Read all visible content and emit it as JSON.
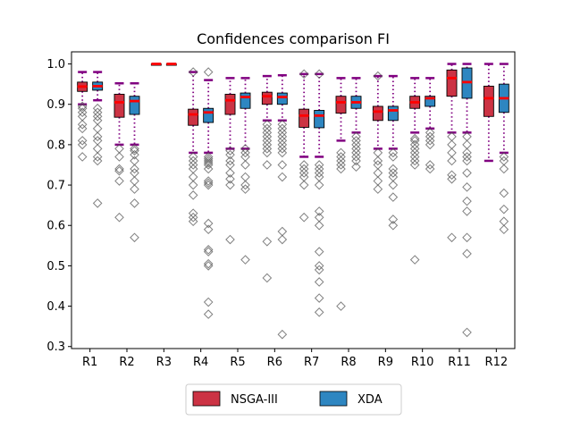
{
  "chart_data": {
    "type": "box",
    "title": "Confidences comparison FI",
    "xlabel": "",
    "ylabel": "",
    "ylim": [
      0.295,
      1.03
    ],
    "yticks": [
      0.3,
      0.4,
      0.5,
      0.6,
      0.7,
      0.8,
      0.9,
      1.0
    ],
    "ytick_labels": [
      "0.3",
      "0.4",
      "0.5",
      "0.6",
      "0.7",
      "0.8",
      "0.9",
      "1.0"
    ],
    "categories": [
      "R1",
      "R2",
      "R3",
      "R4",
      "R5",
      "R6",
      "R7",
      "R8",
      "R9",
      "R10",
      "R11",
      "R12"
    ],
    "legend": {
      "placement": "below",
      "entries": [
        "NSGA-III",
        "XDA"
      ]
    },
    "colors": {
      "NSGA-III": "#cc3344",
      "XDA": "#2e86c1",
      "median": "#ff0000",
      "whisker": "#800080",
      "flier": "#555555"
    },
    "series": [
      {
        "name": "NSGA-III",
        "boxes": [
          {
            "q1": 0.932,
            "median": 0.944,
            "q3": 0.955,
            "whislo": 0.9,
            "whishi": 0.98,
            "fliers": [
              0.77,
              0.8,
              0.81,
              0.84,
              0.85,
              0.87,
              0.88,
              0.89,
              0.895
            ]
          },
          {
            "q1": 0.868,
            "median": 0.905,
            "q3": 0.925,
            "whislo": 0.8,
            "whishi": 0.952,
            "fliers": [
              0.62,
              0.71,
              0.735,
              0.74,
              0.77,
              0.79
            ]
          },
          {
            "q1": 0.999,
            "median": 1.0,
            "q3": 1.0,
            "whislo": 0.999,
            "whishi": 1.0,
            "fliers": []
          },
          {
            "q1": 0.848,
            "median": 0.875,
            "q3": 0.888,
            "whislo": 0.78,
            "whishi": 0.98,
            "fliers": [
              0.61,
              0.62,
              0.63,
              0.675,
              0.7,
              0.72,
              0.74,
              0.75,
              0.76,
              0.77,
              0.98
            ]
          },
          {
            "q1": 0.875,
            "median": 0.91,
            "q3": 0.925,
            "whislo": 0.79,
            "whishi": 0.965,
            "fliers": [
              0.565,
              0.7,
              0.715,
              0.73,
              0.75,
              0.76,
              0.775,
              0.785
            ]
          },
          {
            "q1": 0.9,
            "median": 0.92,
            "q3": 0.93,
            "whislo": 0.86,
            "whishi": 0.97,
            "fliers": [
              0.47,
              0.56,
              0.75,
              0.78,
              0.79,
              0.8,
              0.81,
              0.82,
              0.83,
              0.84,
              0.85
            ]
          },
          {
            "q1": 0.843,
            "median": 0.872,
            "q3": 0.888,
            "whislo": 0.77,
            "whishi": 0.975,
            "fliers": [
              0.62,
              0.7,
              0.72,
              0.73,
              0.74,
              0.75,
              0.975
            ]
          },
          {
            "q1": 0.878,
            "median": 0.905,
            "q3": 0.92,
            "whislo": 0.81,
            "whishi": 0.965,
            "fliers": [
              0.4,
              0.74,
              0.75,
              0.76,
              0.77,
              0.78
            ]
          },
          {
            "q1": 0.86,
            "median": 0.882,
            "q3": 0.895,
            "whislo": 0.79,
            "whishi": 0.97,
            "fliers": [
              0.69,
              0.71,
              0.73,
              0.75,
              0.76,
              0.78,
              0.97
            ]
          },
          {
            "q1": 0.89,
            "median": 0.905,
            "q3": 0.92,
            "whislo": 0.83,
            "whishi": 0.965,
            "fliers": [
              0.515,
              0.75,
              0.76,
              0.77,
              0.78,
              0.79,
              0.8,
              0.81,
              0.815
            ]
          },
          {
            "q1": 0.92,
            "median": 0.965,
            "q3": 0.985,
            "whislo": 0.83,
            "whishi": 1.0,
            "fliers": [
              0.57,
              0.715,
              0.725,
              0.76,
              0.78,
              0.8,
              0.82
            ]
          },
          {
            "q1": 0.87,
            "median": 0.915,
            "q3": 0.945,
            "whislo": 0.76,
            "whishi": 1.0,
            "fliers": []
          }
        ]
      },
      {
        "name": "XDA",
        "boxes": [
          {
            "q1": 0.935,
            "median": 0.945,
            "q3": 0.955,
            "whislo": 0.91,
            "whishi": 0.98,
            "fliers": [
              0.655,
              0.76,
              0.77,
              0.79,
              0.81,
              0.82,
              0.84,
              0.86,
              0.87,
              0.88,
              0.89
            ]
          },
          {
            "q1": 0.875,
            "median": 0.908,
            "q3": 0.92,
            "whislo": 0.8,
            "whishi": 0.952,
            "fliers": [
              0.57,
              0.655,
              0.69,
              0.71,
              0.73,
              0.74,
              0.76,
              0.775,
              0.785,
              0.79
            ]
          },
          {
            "q1": 0.999,
            "median": 1.0,
            "q3": 1.0,
            "whislo": 0.999,
            "whishi": 1.0,
            "fliers": []
          },
          {
            "q1": 0.855,
            "median": 0.88,
            "q3": 0.89,
            "whislo": 0.78,
            "whishi": 0.96,
            "fliers": [
              0.38,
              0.41,
              0.5,
              0.505,
              0.535,
              0.54,
              0.59,
              0.605,
              0.7,
              0.705,
              0.71,
              0.74,
              0.75,
              0.755,
              0.76,
              0.765,
              0.77,
              0.98
            ]
          },
          {
            "q1": 0.89,
            "median": 0.918,
            "q3": 0.928,
            "whislo": 0.79,
            "whishi": 0.965,
            "fliers": [
              0.515,
              0.69,
              0.7,
              0.72,
              0.75,
              0.77,
              0.78,
              0.79
            ]
          },
          {
            "q1": 0.9,
            "median": 0.918,
            "q3": 0.928,
            "whislo": 0.86,
            "whishi": 0.972,
            "fliers": [
              0.33,
              0.565,
              0.585,
              0.72,
              0.75,
              0.78,
              0.79,
              0.8,
              0.81,
              0.82,
              0.83,
              0.84,
              0.85
            ]
          },
          {
            "q1": 0.842,
            "median": 0.872,
            "q3": 0.885,
            "whislo": 0.77,
            "whishi": 0.975,
            "fliers": [
              0.385,
              0.42,
              0.46,
              0.49,
              0.5,
              0.535,
              0.6,
              0.62,
              0.635,
              0.7,
              0.72,
              0.73,
              0.74,
              0.75,
              0.975
            ]
          },
          {
            "q1": 0.89,
            "median": 0.905,
            "q3": 0.92,
            "whislo": 0.83,
            "whishi": 0.965,
            "fliers": [
              0.745,
              0.76,
              0.77,
              0.78,
              0.79,
              0.8,
              0.81,
              0.82
            ]
          },
          {
            "q1": 0.86,
            "median": 0.885,
            "q3": 0.895,
            "whislo": 0.79,
            "whishi": 0.97,
            "fliers": [
              0.6,
              0.615,
              0.67,
              0.7,
              0.72,
              0.73,
              0.74,
              0.77,
              0.78
            ]
          },
          {
            "q1": 0.895,
            "median": 0.915,
            "q3": 0.92,
            "whislo": 0.84,
            "whishi": 0.965,
            "fliers": [
              0.74,
              0.75,
              0.8,
              0.81,
              0.82,
              0.83
            ]
          },
          {
            "q1": 0.915,
            "median": 0.955,
            "q3": 0.99,
            "whislo": 0.83,
            "whishi": 1.0,
            "fliers": [
              0.335,
              0.53,
              0.57,
              0.635,
              0.66,
              0.695,
              0.73,
              0.76,
              0.77,
              0.78,
              0.8,
              0.82
            ]
          },
          {
            "q1": 0.88,
            "median": 0.915,
            "q3": 0.95,
            "whislo": 0.78,
            "whishi": 1.0,
            "fliers": [
              0.59,
              0.61,
              0.64,
              0.68,
              0.74,
              0.76,
              0.77
            ]
          }
        ]
      }
    ]
  }
}
